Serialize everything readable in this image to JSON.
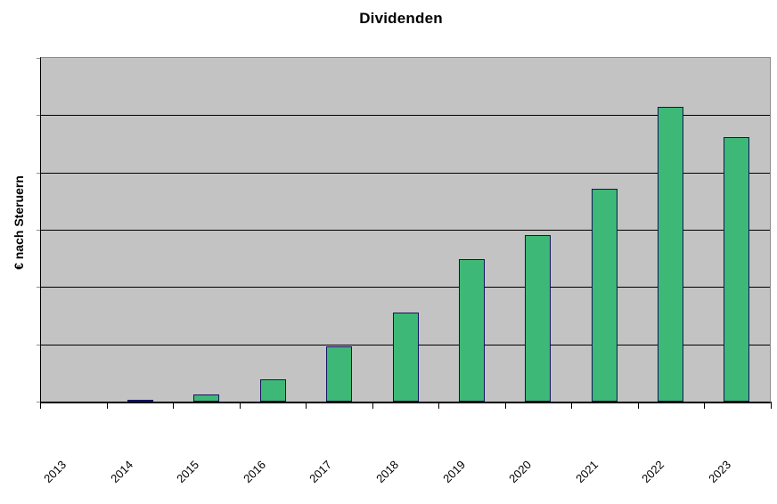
{
  "chart_data": {
    "type": "bar",
    "title": "Dividenden",
    "ylabel": "€ nach Steruern",
    "xlabel": "",
    "categories": [
      "2013",
      "2014",
      "2015",
      "2016",
      "2017",
      "2018",
      "2019",
      "2020",
      "2021",
      "2022",
      "2023"
    ],
    "values": [
      0,
      0.03,
      0.13,
      0.39,
      0.96,
      1.56,
      2.48,
      2.91,
      3.71,
      5.15,
      4.61
    ],
    "value_units": "gridline-intervals (y axis has no numeric tick labels; 1 unit = one horizontal gridline interval)",
    "ylim": [
      0,
      6
    ],
    "y_tick_labels": [],
    "gridlines": "horizontal",
    "gridline_intervals": 6,
    "legend": "none",
    "bar_outline": true,
    "colors": {
      "bar_fill": "#3eb877",
      "bar_border": "#13135e",
      "plot_background": "#c3c3c3",
      "gridline": "#000000",
      "axis": "#000000",
      "plot_border": "#8c8c8c",
      "text": "#000000",
      "page_background": "#ffffff"
    }
  }
}
